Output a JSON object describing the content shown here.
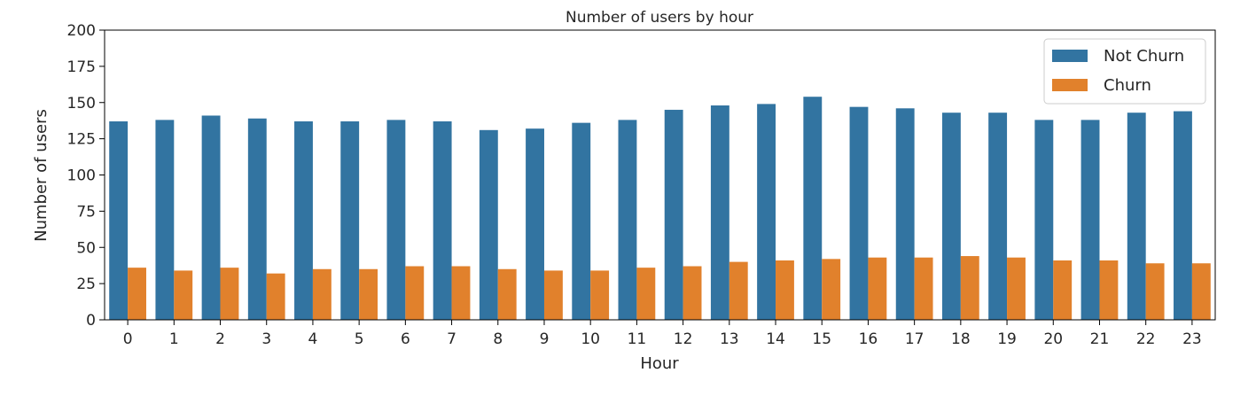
{
  "chart_data": {
    "type": "bar",
    "title": "Number of users by hour",
    "xlabel": "Hour",
    "ylabel": "Number of users",
    "ylim": [
      0,
      200
    ],
    "yticks": [
      0,
      25,
      50,
      75,
      100,
      125,
      150,
      175,
      200
    ],
    "categories": [
      "0",
      "1",
      "2",
      "3",
      "4",
      "5",
      "6",
      "7",
      "8",
      "9",
      "10",
      "11",
      "12",
      "13",
      "14",
      "15",
      "16",
      "17",
      "18",
      "19",
      "20",
      "21",
      "22",
      "23"
    ],
    "series": [
      {
        "name": "Not Churn",
        "color": "#3274a1",
        "values": [
          137,
          138,
          141,
          139,
          137,
          137,
          138,
          137,
          131,
          132,
          136,
          138,
          145,
          148,
          149,
          154,
          147,
          146,
          143,
          143,
          138,
          138,
          143,
          144
        ]
      },
      {
        "name": "Churn",
        "color": "#e1812c",
        "values": [
          36,
          34,
          36,
          32,
          35,
          35,
          37,
          37,
          35,
          34,
          34,
          36,
          37,
          40,
          41,
          42,
          43,
          43,
          44,
          43,
          41,
          41,
          39,
          39
        ]
      }
    ],
    "grid": false,
    "legend_position": "top-right"
  }
}
